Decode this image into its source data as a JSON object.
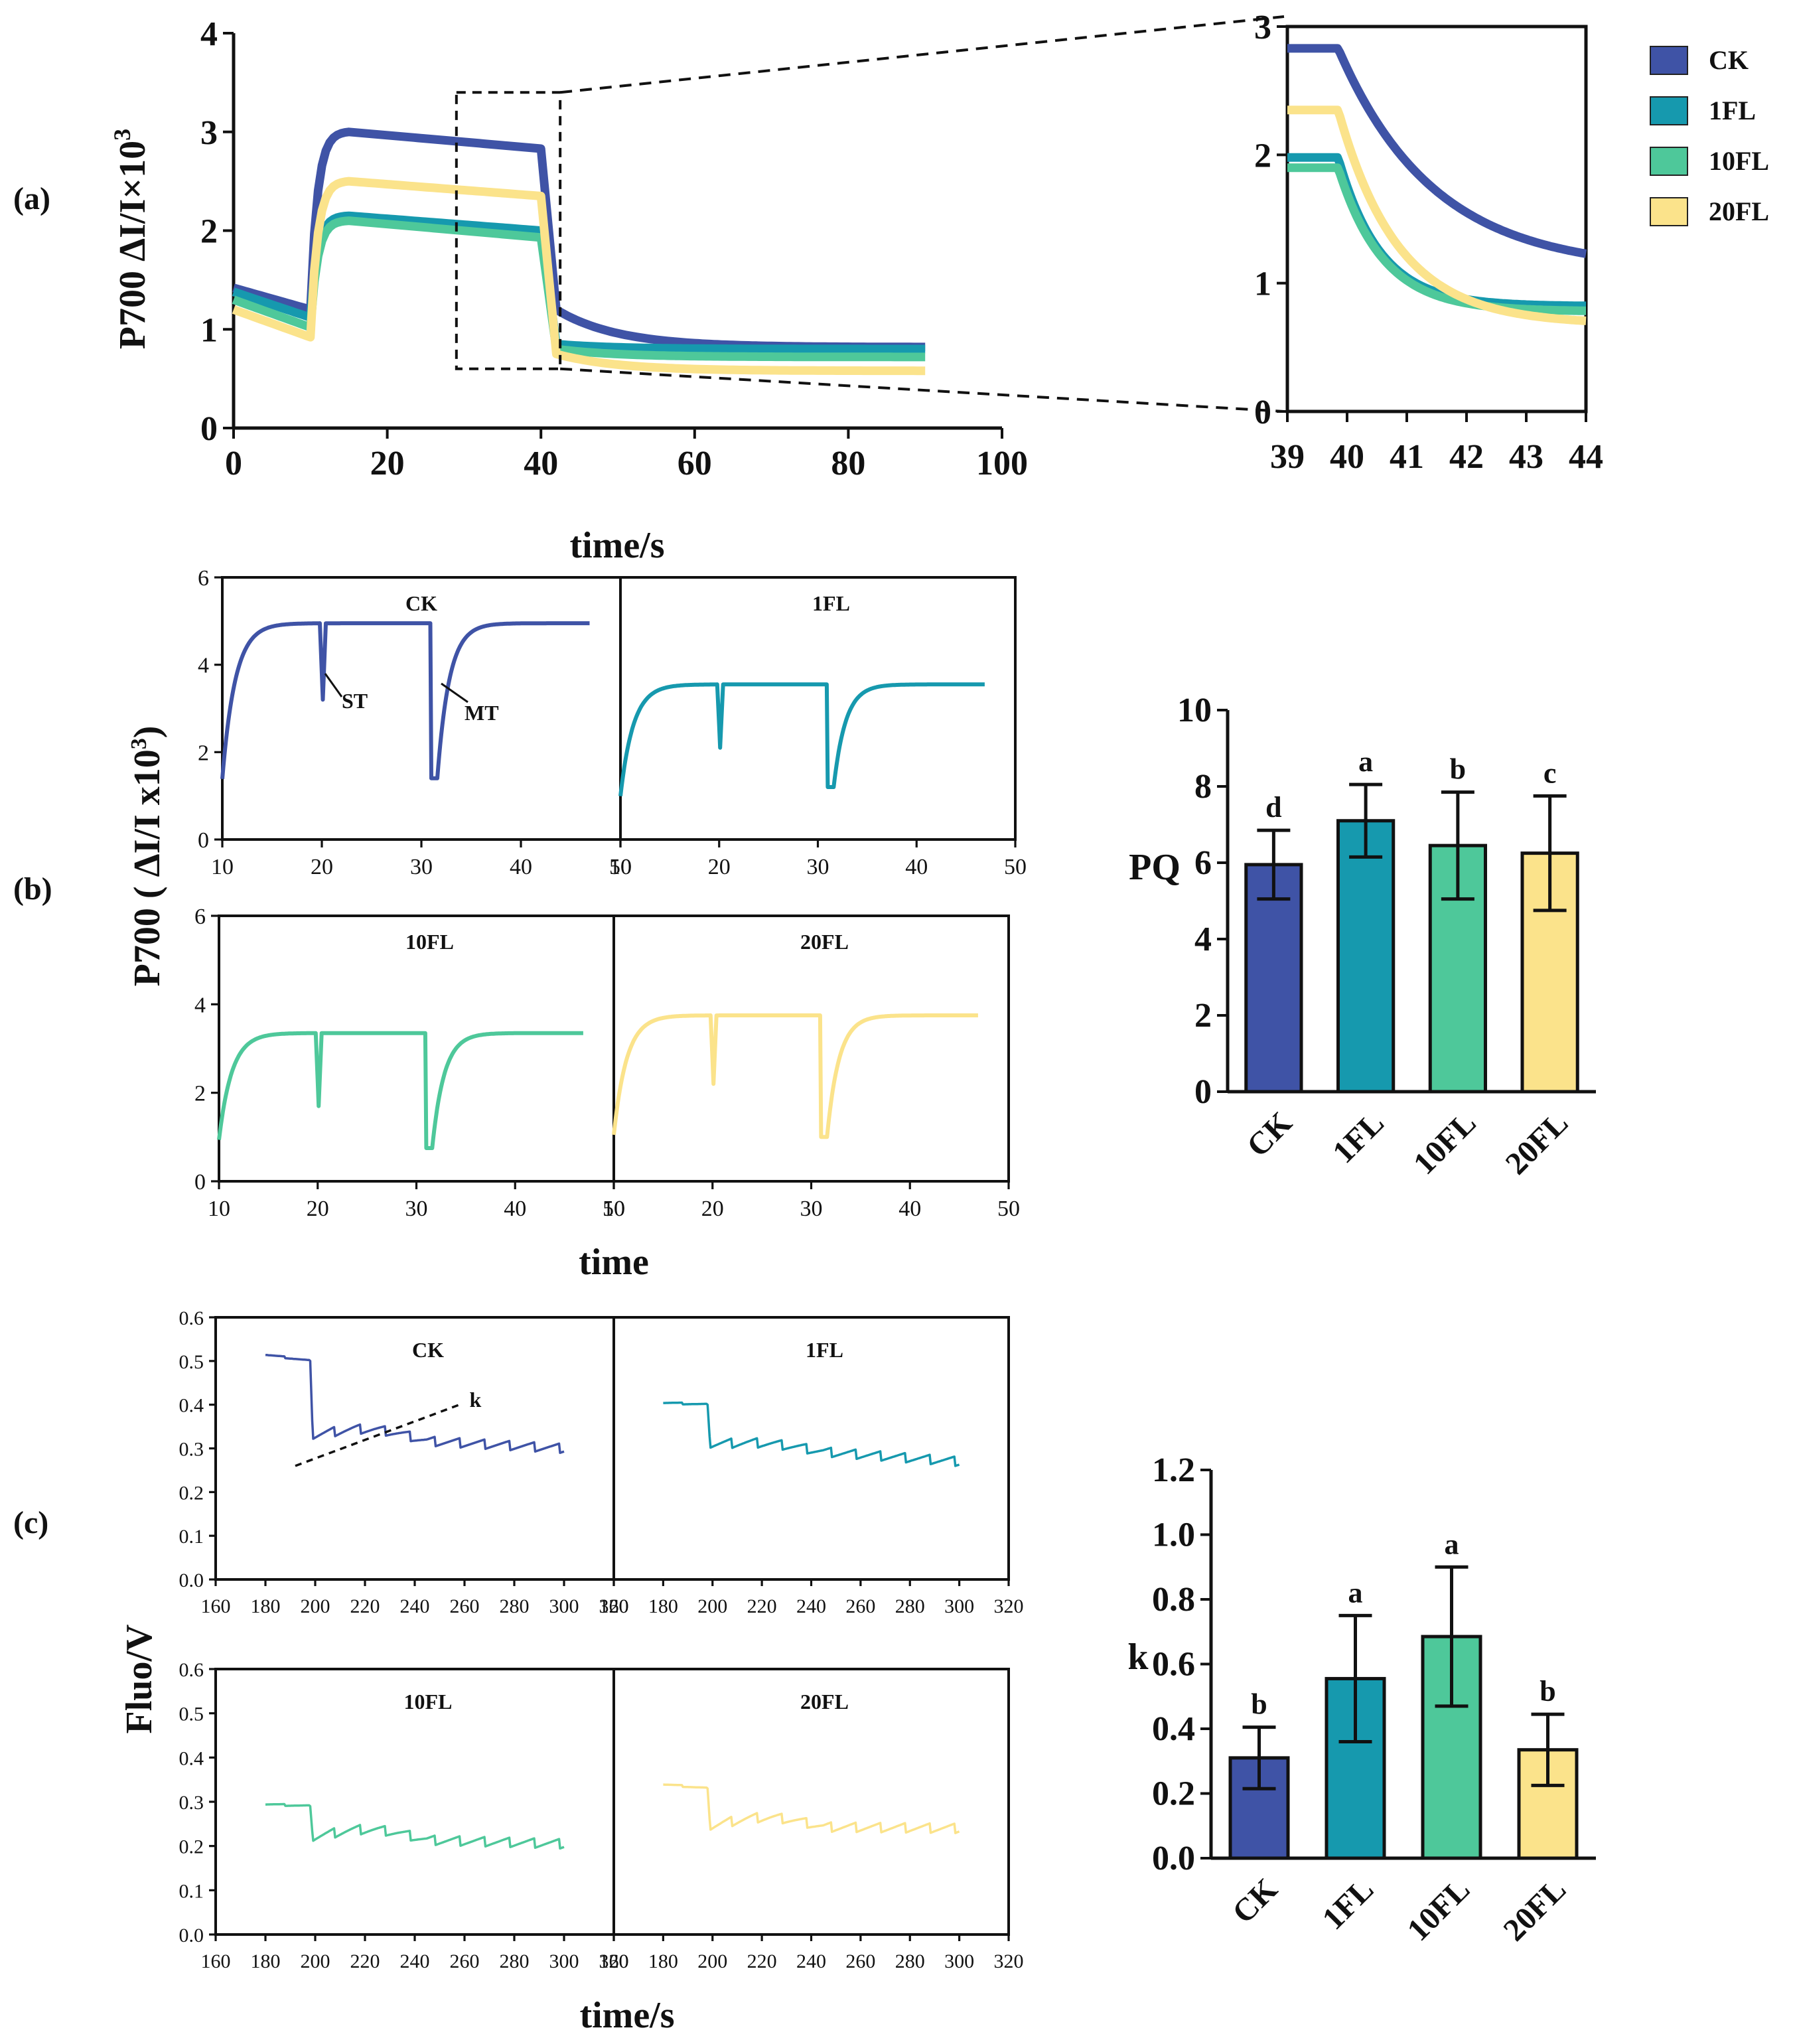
{
  "colors": {
    "CK": "#3f53a6",
    "1FL": "#1699ae",
    "10FL": "#4ec89a",
    "20FL": "#fbe38b",
    "axis": "#111111"
  },
  "legend": [
    "CK",
    "1FL",
    "10FL",
    "20FL"
  ],
  "panel_labels": {
    "a": "(a)",
    "b": "(b)",
    "c": "(c)"
  },
  "chart_data": [
    {
      "id": "a-main",
      "type": "line",
      "ylabel": "P700 ΔI/I×10",
      "ylabel_sup": "3",
      "xlabel": "time/s",
      "xlim": [
        0,
        100
      ],
      "ylim": [
        0,
        4
      ],
      "xticks": [
        "0",
        "20",
        "40",
        "60",
        "80",
        "100"
      ],
      "yticks": [
        "0",
        "1",
        "2",
        "3",
        "4"
      ],
      "zoom_box": {
        "x": [
          29,
          42.5
        ],
        "y": [
          0.6,
          3.4
        ]
      },
      "series": [
        {
          "name": "CK",
          "base0": 1.42,
          "pre_end": 1.2,
          "peak": 3.0,
          "plateau_end": 2.83,
          "tail_start": 1.2,
          "final": 0.82
        },
        {
          "name": "1FL",
          "base0": 1.38,
          "pre_end": 1.12,
          "peak": 2.15,
          "plateau_end": 2.0,
          "tail_start": 0.85,
          "final": 0.8
        },
        {
          "name": "10FL",
          "base0": 1.3,
          "pre_end": 1.02,
          "peak": 2.1,
          "plateau_end": 1.93,
          "tail_start": 0.8,
          "final": 0.72
        },
        {
          "name": "20FL",
          "base0": 1.2,
          "pre_end": 0.92,
          "peak": 2.5,
          "plateau_end": 2.35,
          "tail_start": 0.75,
          "final": 0.58
        }
      ]
    },
    {
      "id": "a-zoom",
      "type": "line",
      "xlim": [
        39,
        44
      ],
      "ylim": [
        0,
        3
      ],
      "xticks": [
        "39",
        "40",
        "41",
        "42",
        "43",
        "44"
      ],
      "yticks": [
        "0",
        "1",
        "2",
        "3"
      ],
      "series": [
        {
          "name": "CK",
          "plateau": 2.83,
          "drop_at": 39.85,
          "final": 1.1,
          "tau": 1.6
        },
        {
          "name": "1FL",
          "plateau": 1.98,
          "drop_at": 39.85,
          "final": 0.82,
          "tau": 0.7
        },
        {
          "name": "10FL",
          "plateau": 1.9,
          "drop_at": 39.85,
          "final": 0.78,
          "tau": 0.75
        },
        {
          "name": "20FL",
          "plateau": 2.35,
          "drop_at": 39.85,
          "final": 0.68,
          "tau": 1.0
        }
      ]
    },
    {
      "id": "b-traces",
      "type": "line",
      "ylabel": "P700 ( ΔI/I x10",
      "ylabel_sup": "3",
      "ylabel_end": ")",
      "xlabel": "time",
      "xlim": [
        10,
        50
      ],
      "ylim": [
        0,
        6
      ],
      "xticks": [
        "10",
        "20",
        "30",
        "40",
        "50"
      ],
      "yticks": [
        "0",
        "2",
        "4",
        "6"
      ],
      "annotations": [
        "ST",
        "MT"
      ],
      "series": [
        {
          "name": "CK",
          "plateau": 4.95,
          "st_min": 3.2,
          "mt_min": 1.4
        },
        {
          "name": "1FL",
          "plateau": 3.55,
          "st_min": 2.1,
          "mt_min": 1.2
        },
        {
          "name": "10FL",
          "plateau": 3.35,
          "st_min": 1.7,
          "mt_min": 0.75
        },
        {
          "name": "20FL",
          "plateau": 3.75,
          "st_min": 2.2,
          "mt_min": 1.0
        }
      ]
    },
    {
      "id": "b-bar",
      "type": "bar",
      "ylabel": "PQ",
      "categories": [
        "CK",
        "1FL",
        "10FL",
        "20FL"
      ],
      "values": [
        5.95,
        7.1,
        6.45,
        6.25
      ],
      "errors": [
        0.9,
        0.95,
        1.4,
        1.5
      ],
      "letters": [
        "d",
        "a",
        "b",
        "c"
      ],
      "ylim": [
        0,
        10
      ],
      "yticks": [
        "0",
        "2",
        "4",
        "6",
        "8",
        "10"
      ]
    },
    {
      "id": "c-traces",
      "type": "line",
      "ylabel": "Fluo/V",
      "xlabel": "time/s",
      "xlim": [
        160,
        320
      ],
      "ylim": [
        0,
        0.6
      ],
      "xticks": [
        "160",
        "180",
        "200",
        "220",
        "240",
        "260",
        "280",
        "300",
        "320"
      ],
      "yticks": [
        "0.0",
        "0.1",
        "0.2",
        "0.3",
        "0.4",
        "0.5",
        "0.6"
      ],
      "annotation": "k",
      "series": [
        {
          "name": "CK",
          "pre_start": 0.515,
          "pre_end": 0.5,
          "post": 0.33,
          "end": 0.3,
          "bump": 0.02
        },
        {
          "name": "1FL",
          "pre_start": 0.405,
          "pre_end": 0.4,
          "post": 0.31,
          "end": 0.27,
          "bump": 0.01
        },
        {
          "name": "10FL",
          "pre_start": 0.295,
          "pre_end": 0.29,
          "post": 0.22,
          "end": 0.205,
          "bump": 0.02
        },
        {
          "name": "20FL",
          "pre_start": 0.34,
          "pre_end": 0.33,
          "post": 0.245,
          "end": 0.24,
          "bump": 0.02
        }
      ]
    },
    {
      "id": "c-bar",
      "type": "bar",
      "ylabel": "k",
      "categories": [
        "CK",
        "1FL",
        "10FL",
        "20FL"
      ],
      "values": [
        0.31,
        0.555,
        0.685,
        0.335
      ],
      "errors": [
        0.095,
        0.195,
        0.215,
        0.11
      ],
      "letters": [
        "b",
        "a",
        "a",
        "b"
      ],
      "ylim": [
        0,
        1.2
      ],
      "yticks": [
        "0.0",
        "0.2",
        "0.4",
        "0.6",
        "0.8",
        "1.0",
        "1.2"
      ]
    }
  ]
}
